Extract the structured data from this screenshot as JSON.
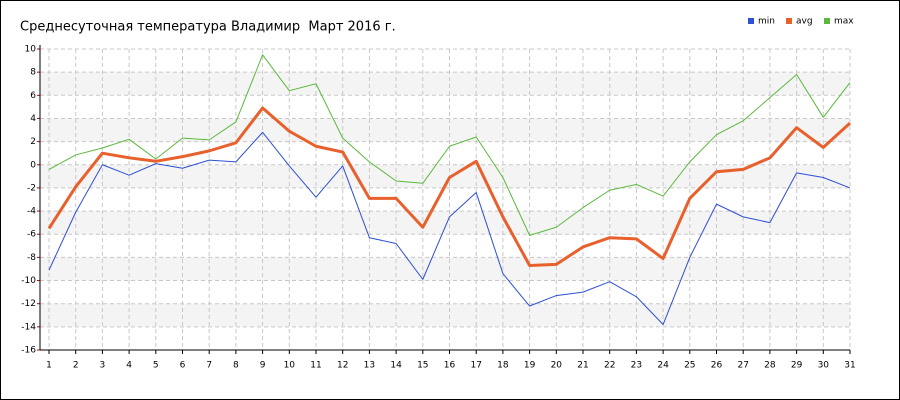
{
  "chart_data": {
    "type": "line",
    "title": "Среднесуточная температура Владимир  Март 2016 г.",
    "x": [
      1,
      2,
      3,
      4,
      5,
      6,
      7,
      8,
      9,
      10,
      11,
      12,
      13,
      14,
      15,
      16,
      17,
      18,
      19,
      20,
      21,
      22,
      23,
      24,
      25,
      26,
      27,
      28,
      29,
      30,
      31
    ],
    "xlim": [
      1,
      31
    ],
    "xticks": [
      1,
      2,
      3,
      4,
      5,
      6,
      7,
      8,
      9,
      10,
      11,
      12,
      13,
      14,
      15,
      16,
      17,
      18,
      19,
      20,
      21,
      22,
      23,
      24,
      25,
      26,
      27,
      28,
      29,
      30,
      31
    ],
    "ylim": [
      -16,
      10
    ],
    "yticks": [
      -16,
      -14,
      -12,
      -10,
      -8,
      -6,
      -4,
      -2,
      0,
      2,
      4,
      6,
      8,
      10
    ],
    "grid": true,
    "legend": "top-right",
    "series": [
      {
        "name": "min",
        "color": "#2e4fd6",
        "values": [
          -9.1,
          -4.1,
          0.0,
          -0.9,
          0.1,
          -0.3,
          0.4,
          0.25,
          2.8,
          -0.1,
          -2.8,
          -0.1,
          -6.3,
          -6.8,
          -9.9,
          -4.5,
          -2.4,
          -9.4,
          -12.2,
          -11.3,
          -11.0,
          -10.1,
          -11.4,
          -13.8,
          -8.0,
          -3.4,
          -4.5,
          -5.0,
          -0.7,
          -1.1,
          -2.0
        ]
      },
      {
        "name": "avg",
        "color": "#e8602c",
        "values": [
          -5.5,
          -1.9,
          1.0,
          0.6,
          0.3,
          0.7,
          1.2,
          1.9,
          4.9,
          2.9,
          1.6,
          1.1,
          -2.9,
          -2.9,
          -5.4,
          -1.1,
          0.3,
          -4.5,
          -8.7,
          -8.6,
          -7.1,
          -6.3,
          -6.4,
          -8.1,
          -2.9,
          -0.6,
          -0.4,
          0.6,
          3.2,
          1.5,
          3.6
        ]
      },
      {
        "name": "max",
        "color": "#5cb83c",
        "values": [
          -0.4,
          0.85,
          1.45,
          2.2,
          0.5,
          2.3,
          2.15,
          3.7,
          9.5,
          6.4,
          7.0,
          2.3,
          0.25,
          -1.4,
          -1.6,
          1.6,
          2.4,
          -1.1,
          -6.1,
          -5.4,
          -3.7,
          -2.2,
          -1.7,
          -2.7,
          0.25,
          2.6,
          3.8,
          5.8,
          7.8,
          4.1,
          7.1
        ]
      }
    ]
  }
}
